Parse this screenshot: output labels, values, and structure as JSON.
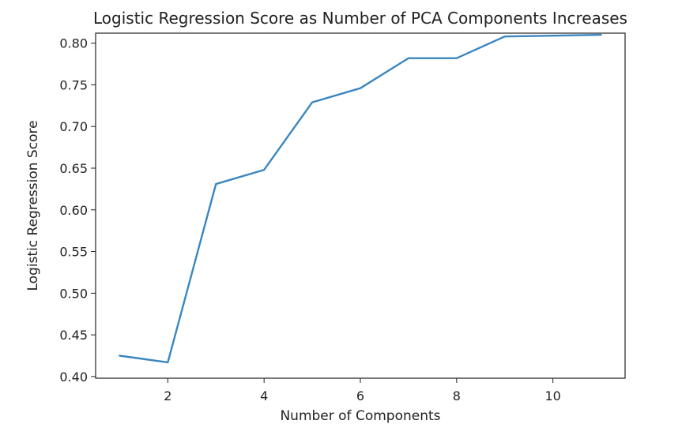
{
  "chart_data": {
    "type": "line",
    "title": "Logistic Regression Score as Number of PCA Components Increases",
    "xlabel": "Number of Components",
    "ylabel": "Logistic Regression Score",
    "xlim": [
      0.5,
      11.5
    ],
    "ylim": [
      0.398,
      0.812
    ],
    "xticks": [
      2,
      4,
      6,
      8,
      10
    ],
    "yticks": [
      0.4,
      0.45,
      0.5,
      0.55,
      0.6,
      0.65,
      0.7,
      0.75,
      0.8
    ],
    "ytick_labels": [
      "0.40",
      "0.45",
      "0.50",
      "0.55",
      "0.60",
      "0.65",
      "0.70",
      "0.75",
      "0.80"
    ],
    "grid": false,
    "legend": "none",
    "series": [
      {
        "x": [
          1,
          2,
          3,
          4,
          5,
          6,
          7,
          8,
          9,
          10,
          11
        ],
        "values": [
          0.425,
          0.417,
          0.631,
          0.648,
          0.729,
          0.746,
          0.782,
          0.782,
          0.808,
          0.809,
          0.81
        ],
        "color": "#3a86c0"
      }
    ]
  }
}
